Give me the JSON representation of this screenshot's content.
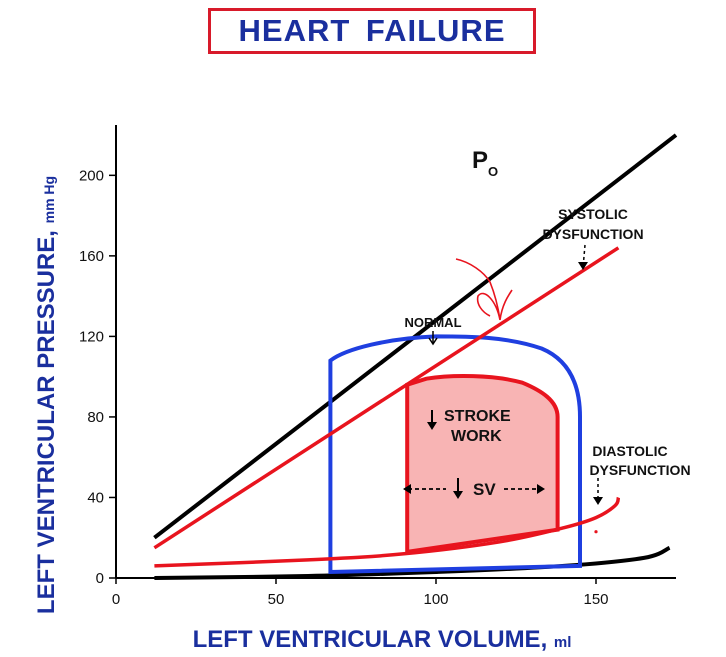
{
  "title": "HEART  FAILURE",
  "colors": {
    "title_text": "#1a2f9e",
    "title_border": "#d81a2a",
    "normal_loop": "#1f3fe0",
    "failure": "#e8141e",
    "failure_fill": "#f8b4b4",
    "po_line": "#000000",
    "annotation_scribble": "#e8141e"
  },
  "chart_data": {
    "type": "pv-loop",
    "xlabel": "LEFT  VENTRICULAR  VOLUME,",
    "xlabel_unit": "ml",
    "ylabel": "LEFT  VENTRICULAR  PRESSURE,",
    "ylabel_unit": "mm Hg",
    "xlim": [
      0,
      175
    ],
    "ylim": [
      0,
      225
    ],
    "x_ticks": [
      "0",
      "50",
      "100",
      "150"
    ],
    "y_ticks": [
      "0",
      "40",
      "80",
      "120",
      "160",
      "200"
    ],
    "series": [
      {
        "name": "Po",
        "kind": "line",
        "points": [
          [
            12,
            20
          ],
          [
            175,
            220
          ]
        ]
      },
      {
        "name": "NORMAL",
        "kind": "loop",
        "points": [
          [
            67,
            108
          ],
          [
            67,
            3
          ],
          [
            145,
            7
          ],
          [
            145,
            80
          ],
          [
            140,
            100
          ],
          [
            133,
            113
          ],
          [
            120,
            119
          ],
          [
            100,
            120
          ],
          [
            80,
            114
          ],
          [
            67,
            108
          ]
        ]
      },
      {
        "name": "SYSTOLIC DYSFUNCTION",
        "kind": "line",
        "points": [
          [
            12,
            15
          ],
          [
            157,
            164
          ]
        ]
      },
      {
        "name": "DIASTOLIC DYSFUNCTION",
        "kind": "curve",
        "points": [
          [
            12,
            6
          ],
          [
            60,
            9
          ],
          [
            90,
            12
          ],
          [
            120,
            18
          ],
          [
            140,
            25
          ],
          [
            150,
            30
          ],
          [
            156,
            36
          ],
          [
            157,
            40
          ]
        ]
      },
      {
        "name": "ESPVR (lower)",
        "kind": "curve",
        "points": [
          [
            12,
            0
          ],
          [
            60,
            1
          ],
          [
            100,
            3
          ],
          [
            140,
            6
          ],
          [
            165,
            10
          ],
          [
            173,
            15
          ]
        ]
      },
      {
        "name": "Failing loop",
        "kind": "loop",
        "points": [
          [
            91,
            96
          ],
          [
            91,
            13
          ],
          [
            138,
            24
          ],
          [
            138,
            80
          ],
          [
            133,
            90
          ],
          [
            125,
            98
          ],
          [
            110,
            101
          ],
          [
            95,
            98
          ],
          [
            91,
            96
          ]
        ]
      }
    ],
    "annotations": {
      "po_label": "P",
      "po_sub": "O",
      "normal": "NORMAL",
      "systolic": [
        "SYSTOLIC",
        "DYSFUNCTION"
      ],
      "diastolic": [
        "DIASTOLIC",
        "DYSFUNCTION"
      ],
      "stroke_work": [
        "STROKE",
        "WORK"
      ],
      "sv": "SV"
    }
  }
}
